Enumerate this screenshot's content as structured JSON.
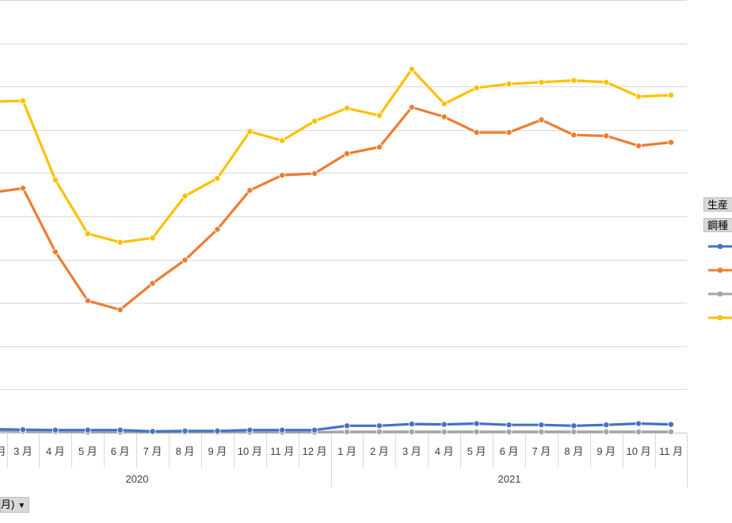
{
  "chart_data": {
    "type": "line",
    "categories": [
      "3 月",
      "4 月",
      "5 月",
      "6 月",
      "7 月",
      "8 月",
      "9 月",
      "10 月",
      "11 月",
      "12 月",
      "1 月",
      "2 月",
      "3 月",
      "4 月",
      "5 月",
      "6 月",
      "7 月",
      "8 月",
      "9 月",
      "10 月",
      "11 月"
    ],
    "leading_partial_label": "月",
    "years": [
      {
        "label": "2020",
        "first_index": 0,
        "last_index": 9
      },
      {
        "label": "2021",
        "first_index": 10,
        "last_index": 20
      }
    ],
    "ylim": [
      0,
      10
    ],
    "gridlines": 10,
    "series": [
      {
        "name": "",
        "color": "#ffc000",
        "start": 7.65,
        "values": [
          7.67,
          5.84,
          4.6,
          4.4,
          4.5,
          5.47,
          5.88,
          6.96,
          6.75,
          7.2,
          7.5,
          7.33,
          8.4,
          7.6,
          7.97,
          8.06,
          8.1,
          8.14,
          8.1,
          7.77,
          7.8
        ]
      },
      {
        "name": "",
        "color": "#ed7d31",
        "start": 5.55,
        "values": [
          5.65,
          4.18,
          3.05,
          2.84,
          3.45,
          3.99,
          4.7,
          5.6,
          5.95,
          5.99,
          6.45,
          6.6,
          7.52,
          7.3,
          6.94,
          6.94,
          7.23,
          6.88,
          6.86,
          6.63,
          6.71
        ]
      },
      {
        "name": "",
        "color": "#a5a5a5",
        "start": 0.04,
        "values": [
          0.03,
          0.02,
          0.01,
          0.01,
          0.01,
          0.01,
          0.01,
          0.01,
          0.01,
          0.01,
          0.02,
          0.02,
          0.02,
          0.02,
          0.02,
          0.02,
          0.02,
          0.02,
          0.02,
          0.02,
          0.02
        ]
      },
      {
        "name": "",
        "color": "#4472c4",
        "start": 0.08,
        "values": [
          0.07,
          0.06,
          0.06,
          0.06,
          0.03,
          0.04,
          0.04,
          0.06,
          0.06,
          0.06,
          0.16,
          0.16,
          0.2,
          0.19,
          0.21,
          0.18,
          0.18,
          0.16,
          0.18,
          0.21,
          0.19
        ]
      }
    ]
  },
  "legend": {
    "field_buttons": [
      "生産",
      "鋼種"
    ]
  },
  "axis_field_button": {
    "label": "月)",
    "arrow": "▼"
  }
}
